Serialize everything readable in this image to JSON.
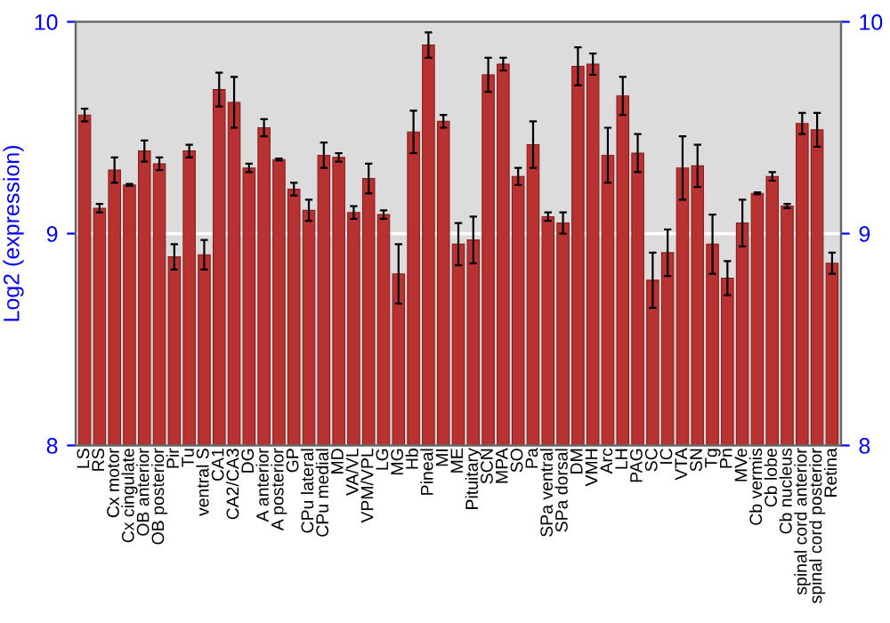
{
  "chart_data": {
    "type": "bar",
    "ylabel": "Log2 (expression)",
    "categories": [
      "LS",
      "RS",
      "Cx motor",
      "Cx cingulate",
      "OB anterior",
      "OB posterior",
      "Pir",
      "Tu",
      "ventral S",
      "CA1",
      "CA2/CA3",
      "DG",
      "A anterior",
      "A posterior",
      "GP",
      "CPu lateral",
      "CPu medial",
      "MD",
      "VA/VL",
      "VPM/VPL",
      "LG",
      "MG",
      "Hb",
      "Pineal",
      "MI",
      "ME",
      "Pituitary",
      "SCN",
      "MPA",
      "SO",
      "Pa",
      "SPa ventral",
      "SPa dorsal",
      "DM",
      "VMH",
      "Arc",
      "LH",
      "PAG",
      "SC",
      "IC",
      "VTA",
      "SN",
      "Tg",
      "Pn",
      "MVe",
      "Cb vermis",
      "Cb lobe",
      "Cb nucleus",
      "spinal cord anterior",
      "spinal cord posterior",
      "Retina"
    ],
    "values": [
      9.56,
      9.12,
      9.3,
      9.23,
      9.39,
      9.33,
      8.89,
      9.39,
      8.9,
      9.68,
      9.62,
      9.31,
      9.5,
      9.35,
      9.21,
      9.11,
      9.37,
      9.36,
      9.1,
      9.26,
      9.09,
      8.81,
      9.48,
      9.89,
      9.53,
      8.95,
      8.97,
      9.75,
      9.8,
      9.27,
      9.42,
      9.08,
      9.05,
      9.79,
      9.8,
      9.37,
      9.65,
      9.38,
      8.78,
      8.91,
      9.31,
      9.32,
      8.95,
      8.79,
      9.05,
      9.19,
      9.27,
      9.13,
      9.52,
      9.49,
      8.86
    ],
    "errors": [
      0.03,
      0.02,
      0.06,
      0.005,
      0.05,
      0.03,
      0.06,
      0.03,
      0.07,
      0.08,
      0.12,
      0.02,
      0.04,
      0.005,
      0.03,
      0.05,
      0.06,
      0.02,
      0.03,
      0.07,
      0.02,
      0.14,
      0.1,
      0.06,
      0.03,
      0.1,
      0.11,
      0.08,
      0.03,
      0.04,
      0.11,
      0.02,
      0.05,
      0.09,
      0.05,
      0.13,
      0.09,
      0.09,
      0.13,
      0.11,
      0.15,
      0.1,
      0.14,
      0.08,
      0.11,
      0.005,
      0.02,
      0.01,
      0.05,
      0.08,
      0.05
    ],
    "color": "#b83232",
    "ylim": [
      8,
      10
    ],
    "yticks": [
      8,
      9,
      10
    ],
    "y2lim": [
      8,
      10
    ],
    "y2ticks": [
      8,
      9,
      10
    ],
    "grid": "y"
  }
}
